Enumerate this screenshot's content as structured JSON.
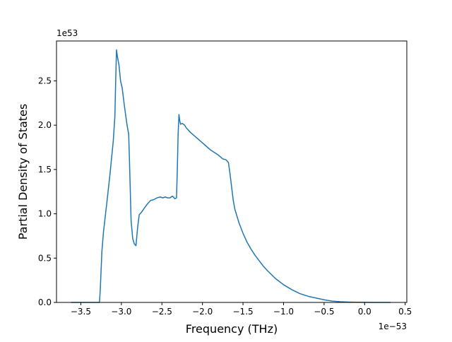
{
  "chart_data": {
    "type": "line",
    "title": "",
    "xlabel": "Frequency (THz)",
    "ylabel": "Partial Density of States",
    "x_offset_label": "1e−53",
    "y_offset_label": "1e53",
    "xlim": [
      -3.8,
      0.52
    ],
    "ylim": [
      0,
      2.95
    ],
    "xticks": [
      -3.5,
      -3.0,
      -2.5,
      -2.0,
      -1.5,
      -1.0,
      -0.5,
      0.0,
      0.5
    ],
    "xtick_labels": [
      "−3.5",
      "−3.0",
      "−2.5",
      "−2.0",
      "−1.5",
      "−1.0",
      "−0.5",
      "0.0",
      "0.5"
    ],
    "yticks": [
      0.0,
      0.5,
      1.0,
      1.5,
      2.0,
      2.5
    ],
    "ytick_labels": [
      "0.0",
      "0.5",
      "1.0",
      "1.5",
      "2.0",
      "2.5"
    ],
    "grid": false,
    "series_color": "#1f77b4",
    "series": [
      {
        "name": "",
        "x": [
          -3.62,
          -3.5,
          -3.35,
          -3.27,
          -3.26,
          -3.24,
          -3.22,
          -3.18,
          -3.14,
          -3.1,
          -3.08,
          -3.07,
          -3.06,
          -3.05,
          -3.03,
          -3.01,
          -2.99,
          -2.96,
          -2.93,
          -2.91,
          -2.9,
          -2.88,
          -2.86,
          -2.84,
          -2.82,
          -2.8,
          -2.78,
          -2.75,
          -2.72,
          -2.68,
          -2.64,
          -2.6,
          -2.56,
          -2.52,
          -2.49,
          -2.46,
          -2.43,
          -2.4,
          -2.37,
          -2.34,
          -2.32,
          -2.31,
          -2.3,
          -2.29,
          -2.28,
          -2.27,
          -2.25,
          -2.22,
          -2.2,
          -2.18,
          -2.15,
          -2.1,
          -2.05,
          -2.0,
          -1.95,
          -1.9,
          -1.85,
          -1.8,
          -1.75,
          -1.71,
          -1.68,
          -1.66,
          -1.64,
          -1.62,
          -1.6,
          -1.55,
          -1.5,
          -1.45,
          -1.4,
          -1.35,
          -1.3,
          -1.25,
          -1.2,
          -1.1,
          -1.0,
          -0.9,
          -0.8,
          -0.7,
          -0.6,
          -0.5,
          -0.4,
          -0.3,
          -0.2,
          -0.1,
          0.0,
          0.1,
          0.2,
          0.32
        ],
        "y": [
          0.0,
          0.0,
          0.0,
          0.0,
          0.15,
          0.58,
          0.8,
          1.12,
          1.45,
          1.82,
          2.1,
          2.5,
          2.85,
          2.78,
          2.68,
          2.5,
          2.42,
          2.2,
          2.0,
          1.9,
          1.6,
          0.92,
          0.72,
          0.66,
          0.64,
          0.84,
          0.99,
          1.02,
          1.06,
          1.11,
          1.15,
          1.16,
          1.18,
          1.19,
          1.18,
          1.19,
          1.18,
          1.18,
          1.2,
          1.17,
          1.18,
          1.5,
          1.9,
          2.12,
          2.05,
          2.01,
          2.02,
          2.0,
          1.97,
          1.95,
          1.92,
          1.88,
          1.84,
          1.8,
          1.76,
          1.72,
          1.69,
          1.66,
          1.62,
          1.61,
          1.58,
          1.45,
          1.3,
          1.15,
          1.05,
          0.9,
          0.78,
          0.68,
          0.6,
          0.53,
          0.47,
          0.41,
          0.36,
          0.27,
          0.2,
          0.145,
          0.1,
          0.07,
          0.05,
          0.03,
          0.015,
          0.008,
          0.004,
          0.002,
          0.001,
          0.0,
          0.0,
          0.0
        ]
      }
    ]
  }
}
